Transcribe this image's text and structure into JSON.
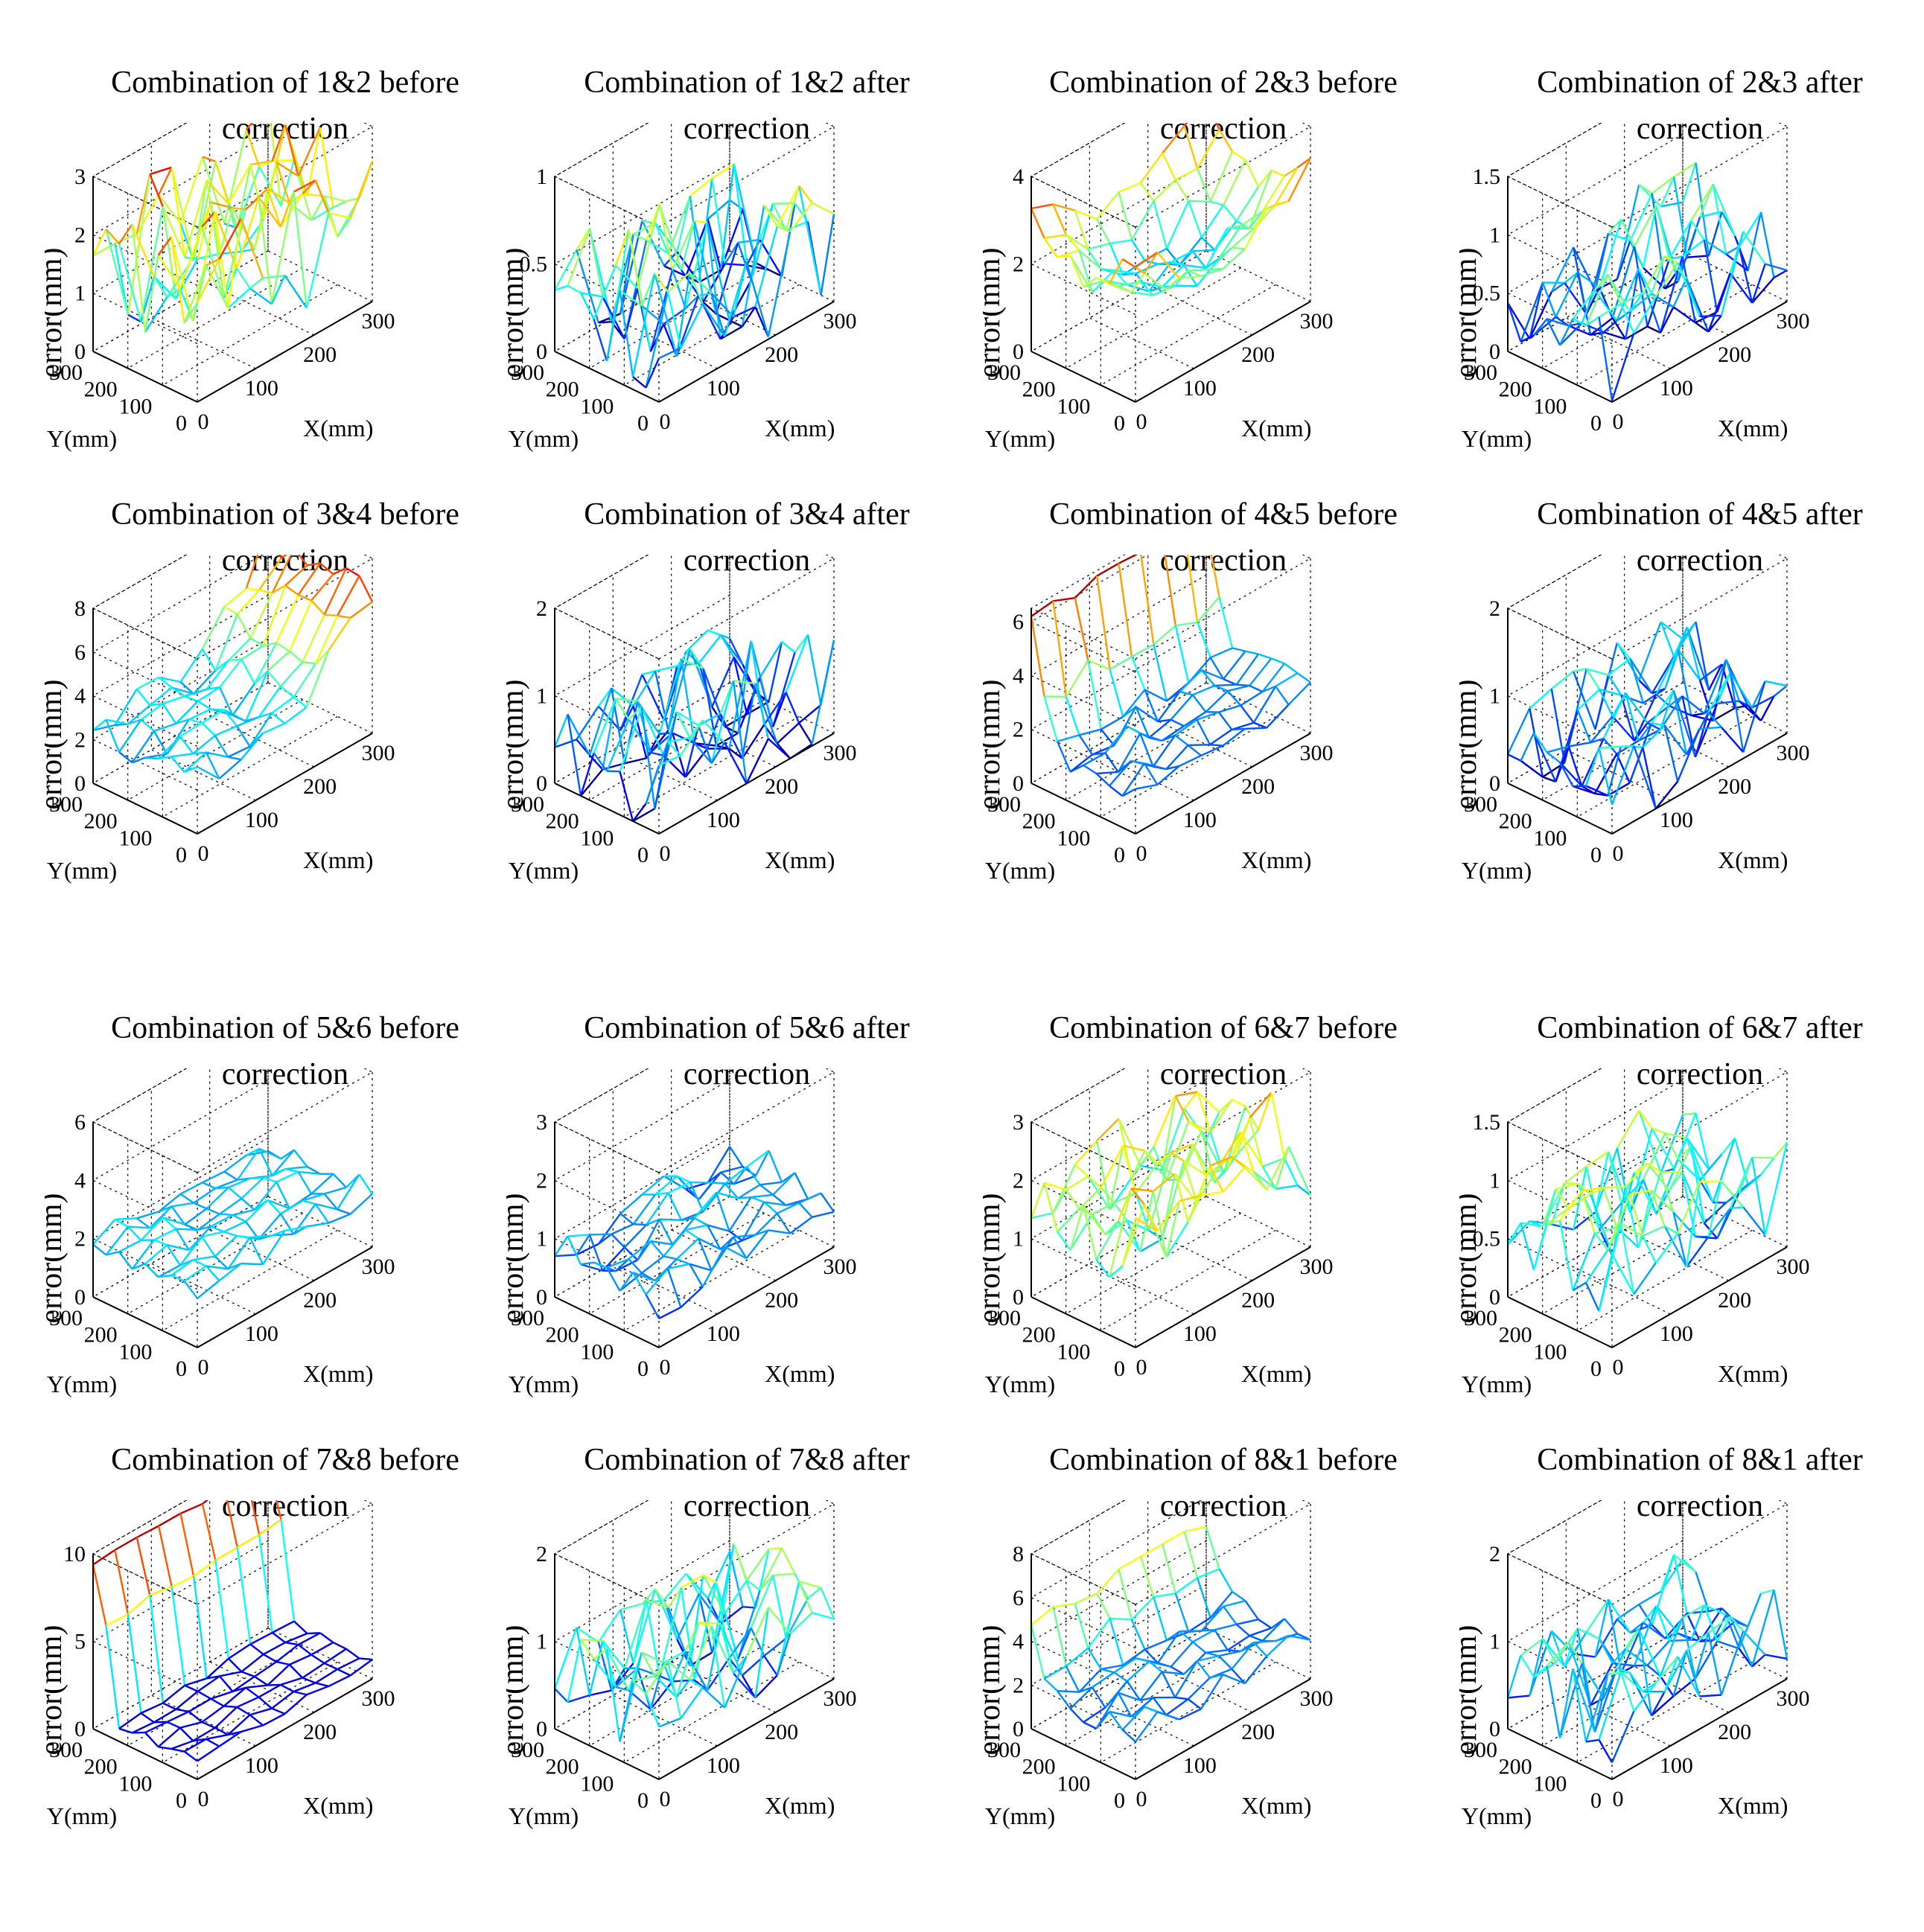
{
  "chart_data": [
    {
      "type": "surface",
      "title": "Combination of 1&2 before\ncorrection",
      "xlabel": "X(mm)",
      "ylabel": "Y(mm)",
      "zlabel": "error(mm)",
      "xticks": [
        "0",
        "100",
        "200",
        "300"
      ],
      "yticks": [
        "0",
        "100",
        "200",
        "300"
      ],
      "zticks": [
        "0",
        "1",
        "2",
        "3"
      ],
      "xlim": [
        0,
        300
      ],
      "ylim": [
        0,
        300
      ],
      "zlim": [
        0,
        3
      ],
      "grid_n": 9,
      "z_base": 1.6,
      "z_amp": 0.8,
      "z_min": 0.0,
      "z_max": 2.9,
      "seed": 1,
      "style": "spiky",
      "colorscale": "jet"
    },
    {
      "type": "surface",
      "title": "Combination of 1&2 after\ncorrection",
      "xlabel": "X(mm)",
      "ylabel": "Y(mm)",
      "zlabel": "error(mm)",
      "xticks": [
        "0",
        "100",
        "200",
        "300"
      ],
      "yticks": [
        "0",
        "100",
        "200",
        "300"
      ],
      "zticks": [
        "0",
        "0.5",
        "1"
      ],
      "xlim": [
        0,
        300
      ],
      "ylim": [
        0,
        300
      ],
      "zlim": [
        0,
        1
      ],
      "grid_n": 9,
      "z_base": 0.35,
      "z_amp": 0.3,
      "z_min": 0.0,
      "z_max": 0.9,
      "seed": 2,
      "style": "spiky",
      "colorscale": "jet"
    },
    {
      "type": "surface",
      "title": "Combination of 2&3 before\ncorrection",
      "xlabel": "X(mm)",
      "ylabel": "Y(mm)",
      "zlabel": "error(mm)",
      "xticks": [
        "0",
        "100",
        "200",
        "300"
      ],
      "yticks": [
        "0",
        "100",
        "200",
        "300"
      ],
      "zticks": [
        "0",
        "2",
        "4"
      ],
      "xlim": [
        0,
        300
      ],
      "ylim": [
        0,
        300
      ],
      "zlim": [
        0,
        4
      ],
      "grid_n": 9,
      "z_base": 1.6,
      "z_amp": 0.7,
      "z_min": 0.3,
      "z_max": 3.5,
      "seed": 3,
      "style": "bowl",
      "colorscale": "jet"
    },
    {
      "type": "surface",
      "title": "Combination of 2&3 after\ncorrection",
      "xlabel": "X(mm)",
      "ylabel": "Y(mm)",
      "zlabel": "error(mm)",
      "xticks": [
        "0",
        "100",
        "200",
        "300"
      ],
      "yticks": [
        "0",
        "100",
        "200",
        "300"
      ],
      "zticks": [
        "0",
        "0.5",
        "1",
        "1.5"
      ],
      "xlim": [
        0,
        300
      ],
      "ylim": [
        0,
        300
      ],
      "zlim": [
        0,
        1.5
      ],
      "grid_n": 9,
      "z_base": 0.45,
      "z_amp": 0.35,
      "z_min": 0.0,
      "z_max": 1.3,
      "seed": 4,
      "style": "spiky",
      "colorscale": "jet"
    },
    {
      "type": "surface",
      "title": "Combination of 3&4 before\ncorrection",
      "xlabel": "X(mm)",
      "ylabel": "Y(mm)",
      "zlabel": "error(mm)",
      "xticks": [
        "0",
        "100",
        "200",
        "300"
      ],
      "yticks": [
        "0",
        "100",
        "200",
        "300"
      ],
      "zticks": [
        "0",
        "2",
        "4",
        "6",
        "8"
      ],
      "xlim": [
        0,
        300
      ],
      "ylim": [
        0,
        300
      ],
      "zlim": [
        0,
        8
      ],
      "grid_n": 9,
      "z_base": 2.5,
      "z_amp": 1.2,
      "z_min": 0.2,
      "z_max": 7.5,
      "seed": 5,
      "style": "ridge",
      "colorscale": "jet"
    },
    {
      "type": "surface",
      "title": "Combination of 3&4 after\ncorrection",
      "xlabel": "X(mm)",
      "ylabel": "Y(mm)",
      "zlabel": "error(mm)",
      "xticks": [
        "0",
        "100",
        "200",
        "300"
      ],
      "yticks": [
        "0",
        "100",
        "200",
        "300"
      ],
      "zticks": [
        "0",
        "1",
        "2"
      ],
      "xlim": [
        0,
        300
      ],
      "ylim": [
        0,
        300
      ],
      "zlim": [
        0,
        2
      ],
      "grid_n": 9,
      "z_base": 0.5,
      "z_amp": 0.45,
      "z_min": 0.0,
      "z_max": 2.1,
      "seed": 6,
      "style": "spiky",
      "colorscale": "jet"
    },
    {
      "type": "surface",
      "title": "Combination of 4&5 before\ncorrection",
      "xlabel": "X(mm)",
      "ylabel": "Y(mm)",
      "zlabel": "error(mm)",
      "xticks": [
        "0",
        "100",
        "200",
        "300"
      ],
      "yticks": [
        "0",
        "100",
        "200",
        "300"
      ],
      "zticks": [
        "0",
        "2",
        "4",
        "6"
      ],
      "xlim": [
        0,
        300
      ],
      "ylim": [
        0,
        300
      ],
      "zlim": [
        0,
        6.5
      ],
      "grid_n": 9,
      "z_base": 1.6,
      "z_amp": 0.8,
      "z_min": 0.3,
      "z_max": 6.3,
      "seed": 7,
      "style": "wall",
      "colorscale": "jet"
    },
    {
      "type": "surface",
      "title": "Combination of 4&5 after\ncorrection",
      "xlabel": "X(mm)",
      "ylabel": "Y(mm)",
      "zlabel": "error(mm)",
      "xticks": [
        "0",
        "100",
        "200",
        "300"
      ],
      "yticks": [
        "0",
        "100",
        "200",
        "300"
      ],
      "zticks": [
        "0",
        "1",
        "2"
      ],
      "xlim": [
        0,
        300
      ],
      "ylim": [
        0,
        300
      ],
      "zlim": [
        0,
        2
      ],
      "grid_n": 9,
      "z_base": 0.45,
      "z_amp": 0.4,
      "z_min": 0.0,
      "z_max": 1.9,
      "seed": 8,
      "style": "spiky",
      "colorscale": "jet"
    },
    {
      "type": "surface",
      "title": "Combination of 5&6 before\ncorrection",
      "xlabel": "X(mm)",
      "ylabel": "Y(mm)",
      "zlabel": "error(mm)",
      "xticks": [
        "0",
        "100",
        "200",
        "300"
      ],
      "yticks": [
        "0",
        "100",
        "200",
        "300"
      ],
      "zticks": [
        "0",
        "2",
        "4",
        "6"
      ],
      "xlim": [
        0,
        300
      ],
      "ylim": [
        0,
        300
      ],
      "zlim": [
        0,
        6
      ],
      "grid_n": 9,
      "z_base": 1.9,
      "z_amp": 0.4,
      "z_min": 1.0,
      "z_max": 4.3,
      "seed": 9,
      "style": "flat",
      "colorscale": "jet"
    },
    {
      "type": "surface",
      "title": "Combination of 5&6 after\ncorrection",
      "xlabel": "X(mm)",
      "ylabel": "Y(mm)",
      "zlabel": "error(mm)",
      "xticks": [
        "0",
        "100",
        "200",
        "300"
      ],
      "yticks": [
        "0",
        "100",
        "200",
        "300"
      ],
      "zticks": [
        "0",
        "1",
        "2",
        "3"
      ],
      "xlim": [
        0,
        300
      ],
      "ylim": [
        0,
        300
      ],
      "zlim": [
        0,
        3
      ],
      "grid_n": 9,
      "z_base": 0.8,
      "z_amp": 0.35,
      "z_min": 0.1,
      "z_max": 1.9,
      "seed": 10,
      "style": "flat",
      "colorscale": "jet"
    },
    {
      "type": "surface",
      "title": "Combination of 6&7 before\ncorrection",
      "xlabel": "X(mm)",
      "ylabel": "Y(mm)",
      "zlabel": "error(mm)",
      "xticks": [
        "0",
        "100",
        "200",
        "300"
      ],
      "yticks": [
        "0",
        "100",
        "200",
        "300"
      ],
      "zticks": [
        "0",
        "1",
        "2",
        "3"
      ],
      "xlim": [
        0,
        300
      ],
      "ylim": [
        0,
        300
      ],
      "zlim": [
        0,
        3
      ],
      "grid_n": 9,
      "z_base": 1.6,
      "z_amp": 0.55,
      "z_min": 0.3,
      "z_max": 2.9,
      "seed": 11,
      "style": "spiky",
      "colorscale": "jet"
    },
    {
      "type": "surface",
      "title": "Combination of 6&7 after\ncorrection",
      "xlabel": "X(mm)",
      "ylabel": "Y(mm)",
      "zlabel": "error(mm)",
      "xticks": [
        "0",
        "100",
        "200",
        "300"
      ],
      "yticks": [
        "0",
        "100",
        "200",
        "300"
      ],
      "zticks": [
        "0",
        "0.5",
        "1",
        "1.5"
      ],
      "xlim": [
        0,
        300
      ],
      "ylim": [
        0,
        300
      ],
      "zlim": [
        0,
        1.5
      ],
      "grid_n": 9,
      "z_base": 0.6,
      "z_amp": 0.3,
      "z_min": 0.0,
      "z_max": 1.2,
      "seed": 12,
      "style": "spiky",
      "colorscale": "jet"
    },
    {
      "type": "surface",
      "title": "Combination of 7&8 before\ncorrection",
      "xlabel": "X(mm)",
      "ylabel": "Y(mm)",
      "zlabel": "error(mm)",
      "xticks": [
        "0",
        "100",
        "200",
        "300"
      ],
      "yticks": [
        "0",
        "100",
        "200",
        "300"
      ],
      "zticks": [
        "0",
        "5",
        "10"
      ],
      "xlim": [
        0,
        300
      ],
      "ylim": [
        0,
        300
      ],
      "zlim": [
        0,
        10
      ],
      "grid_n": 9,
      "z_base": 1.0,
      "z_amp": 0.5,
      "z_min": 0.0,
      "z_max": 9.5,
      "seed": 13,
      "style": "cliff",
      "colorscale": "jet"
    },
    {
      "type": "surface",
      "title": "Combination of 7&8 after\ncorrection",
      "xlabel": "X(mm)",
      "ylabel": "Y(mm)",
      "zlabel": "error(mm)",
      "xticks": [
        "0",
        "100",
        "200",
        "300"
      ],
      "yticks": [
        "0",
        "100",
        "200",
        "300"
      ],
      "zticks": [
        "0",
        "1",
        "2"
      ],
      "xlim": [
        0,
        300
      ],
      "ylim": [
        0,
        300
      ],
      "zlim": [
        0,
        2
      ],
      "grid_n": 9,
      "z_base": 0.7,
      "z_amp": 0.4,
      "z_min": 0.0,
      "z_max": 1.9,
      "seed": 14,
      "style": "spiky",
      "colorscale": "jet"
    },
    {
      "type": "surface",
      "title": "Combination of 8&1 before\ncorrection",
      "xlabel": "X(mm)",
      "ylabel": "Y(mm)",
      "zlabel": "error(mm)",
      "xticks": [
        "0",
        "100",
        "200",
        "300"
      ],
      "yticks": [
        "0",
        "100",
        "200",
        "300"
      ],
      "zticks": [
        "0",
        "2",
        "4",
        "6",
        "8"
      ],
      "xlim": [
        0,
        300
      ],
      "ylim": [
        0,
        300
      ],
      "zlim": [
        0,
        8
      ],
      "grid_n": 9,
      "z_base": 2.0,
      "z_amp": 0.8,
      "z_min": 0.0,
      "z_max": 5.0,
      "seed": 15,
      "style": "wall",
      "colorscale": "jet"
    },
    {
      "type": "surface",
      "title": "Combination of 8&1 after\ncorrection",
      "xlabel": "X(mm)",
      "ylabel": "Y(mm)",
      "zlabel": "error(mm)",
      "xticks": [
        "0",
        "100",
        "200",
        "300"
      ],
      "yticks": [
        "0",
        "100",
        "200",
        "300"
      ],
      "zticks": [
        "0",
        "1",
        "2"
      ],
      "xlim": [
        0,
        300
      ],
      "ylim": [
        0,
        300
      ],
      "zlim": [
        0,
        2
      ],
      "grid_n": 9,
      "z_base": 0.6,
      "z_amp": 0.35,
      "z_min": 0.0,
      "z_max": 1.6,
      "seed": 16,
      "style": "spiky",
      "colorscale": "jet"
    }
  ]
}
